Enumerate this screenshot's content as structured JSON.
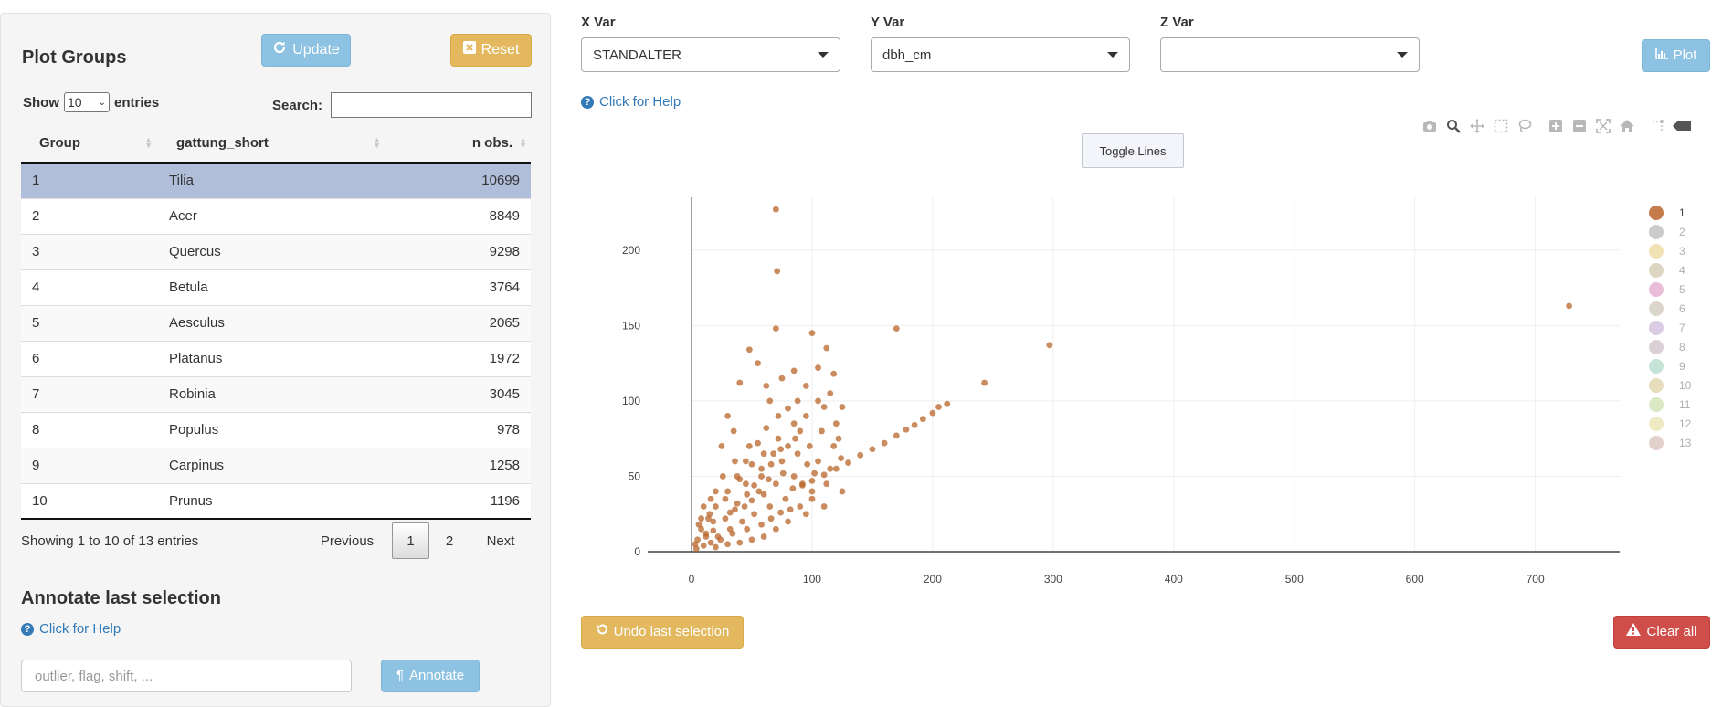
{
  "sidebar": {
    "plot_groups_title": "Plot Groups",
    "update_label": "Update",
    "reset_label": "Reset",
    "show_label": "Show",
    "entries_label": "entries",
    "page_length": "10",
    "search_label": "Search:",
    "search_value": "",
    "columns": [
      "Group",
      "gattung_short",
      "n obs."
    ],
    "rows": [
      {
        "group": "1",
        "genus": "Tilia",
        "n": "10699"
      },
      {
        "group": "2",
        "genus": "Acer",
        "n": "8849"
      },
      {
        "group": "3",
        "genus": "Quercus",
        "n": "9298"
      },
      {
        "group": "4",
        "genus": "Betula",
        "n": "3764"
      },
      {
        "group": "5",
        "genus": "Aesculus",
        "n": "2065"
      },
      {
        "group": "6",
        "genus": "Platanus",
        "n": "1972"
      },
      {
        "group": "7",
        "genus": "Robinia",
        "n": "3045"
      },
      {
        "group": "8",
        "genus": "Populus",
        "n": "978"
      },
      {
        "group": "9",
        "genus": "Carpinus",
        "n": "1258"
      },
      {
        "group": "10",
        "genus": "Prunus",
        "n": "1196"
      }
    ],
    "selected_row": "1",
    "info": "Showing 1 to 10 of 13 entries",
    "pagination": {
      "previous": "Previous",
      "current": "1",
      "page2": "2",
      "next": "Next"
    },
    "annotate_title": "Annotate last selection",
    "help_link": "Click for Help",
    "annotate_placeholder": "outlier, flag, shift, ...",
    "annotate_label": "Annotate"
  },
  "main": {
    "x_var_label": "X Var",
    "x_var_value": "STANDALTER",
    "y_var_label": "Y Var",
    "y_var_value": "dbh_cm",
    "z_var_label": "Z Var",
    "z_var_value": "",
    "plot_label": "Plot",
    "help_link": "Click for Help",
    "toggle_lines_label": "Toggle Lines",
    "undo_label": "Undo last selection",
    "clear_label": "Clear all",
    "toolbar_icons": [
      "camera-icon",
      "zoom-icon",
      "pan-icon",
      "box-select-icon",
      "lasso-select-icon",
      "zoom-in-icon",
      "zoom-out-icon",
      "autoscale-icon",
      "reset-axes-icon",
      "spike-lines-icon",
      "hover-compare-icon"
    ]
  },
  "colors": {
    "info": "#8dc2e2",
    "warning": "#e3b85e",
    "danger": "#cf4e4a",
    "selected_row": "#b0bed9",
    "link": "#337ab7",
    "series_1": "#b8652a"
  },
  "chart_data": {
    "type": "scatter",
    "xlim": [
      0,
      770
    ],
    "ylim": [
      0,
      235
    ],
    "xticks": [
      0,
      100,
      200,
      300,
      400,
      500,
      600,
      700
    ],
    "yticks": [
      0,
      50,
      100,
      150,
      200
    ],
    "grid": true,
    "legend_position": "right",
    "legend": [
      {
        "name": "1",
        "color": "#b8652a",
        "active": true
      },
      {
        "name": "2",
        "color": "#c7c7c7",
        "active": false
      },
      {
        "name": "3",
        "color": "#efdfae",
        "active": false
      },
      {
        "name": "4",
        "color": "#d9d2bb",
        "active": false
      },
      {
        "name": "5",
        "color": "#e9b5d3",
        "active": false
      },
      {
        "name": "6",
        "color": "#d6d2c6",
        "active": false
      },
      {
        "name": "7",
        "color": "#d6c6e1",
        "active": false
      },
      {
        "name": "8",
        "color": "#d8cbd3",
        "active": false
      },
      {
        "name": "9",
        "color": "#bfe0d2",
        "active": false
      },
      {
        "name": "10",
        "color": "#e4d9b6",
        "active": false
      },
      {
        "name": "11",
        "color": "#d6e6bd",
        "active": false
      },
      {
        "name": "12",
        "color": "#ece8be",
        "active": false
      },
      {
        "name": "13",
        "color": "#dfcbc5",
        "active": false
      }
    ],
    "series": [
      {
        "name": "1",
        "points": [
          [
            70,
            227
          ],
          [
            71,
            186
          ],
          [
            70,
            148
          ],
          [
            170,
            148
          ],
          [
            297,
            137
          ],
          [
            728,
            163
          ],
          [
            243,
            112
          ],
          [
            212,
            98
          ],
          [
            205,
            96
          ],
          [
            200,
            92
          ],
          [
            192,
            88
          ],
          [
            185,
            84
          ],
          [
            178,
            81
          ],
          [
            170,
            77
          ],
          [
            160,
            72
          ],
          [
            150,
            68
          ],
          [
            140,
            64
          ],
          [
            130,
            59
          ],
          [
            120,
            55
          ],
          [
            110,
            51
          ],
          [
            100,
            47
          ],
          [
            92,
            44
          ],
          [
            85,
            120
          ],
          [
            105,
            122
          ],
          [
            118,
            118
          ],
          [
            75,
            115
          ],
          [
            62,
            110
          ],
          [
            55,
            125
          ],
          [
            48,
            134
          ],
          [
            100,
            145
          ],
          [
            112,
            135
          ],
          [
            95,
            110
          ],
          [
            40,
            112
          ],
          [
            30,
            90
          ],
          [
            25,
            70
          ],
          [
            35,
            80
          ],
          [
            65,
            100
          ],
          [
            88,
            100
          ],
          [
            110,
            96
          ],
          [
            125,
            96
          ],
          [
            120,
            85
          ],
          [
            122,
            75
          ],
          [
            108,
            80
          ],
          [
            10,
            30
          ],
          [
            15,
            25
          ],
          [
            20,
            40
          ],
          [
            8,
            15
          ],
          [
            5,
            8
          ],
          [
            3,
            5
          ],
          [
            12,
            10
          ],
          [
            18,
            20
          ],
          [
            28,
            35
          ],
          [
            38,
            50
          ],
          [
            45,
            60
          ],
          [
            55,
            72
          ],
          [
            62,
            82
          ],
          [
            72,
            90
          ],
          [
            80,
            95
          ],
          [
            90,
            80
          ],
          [
            98,
            70
          ],
          [
            105,
            60
          ],
          [
            115,
            55
          ],
          [
            125,
            40
          ],
          [
            110,
            30
          ],
          [
            95,
            25
          ],
          [
            80,
            20
          ],
          [
            70,
            15
          ],
          [
            60,
            10
          ],
          [
            50,
            8
          ],
          [
            40,
            6
          ],
          [
            30,
            5
          ],
          [
            20,
            3
          ],
          [
            45,
            45
          ],
          [
            58,
            55
          ],
          [
            68,
            65
          ],
          [
            75,
            60
          ],
          [
            85,
            50
          ],
          [
            92,
            45
          ],
          [
            100,
            40
          ],
          [
            78,
            35
          ],
          [
            65,
            30
          ],
          [
            52,
            25
          ],
          [
            42,
            20
          ],
          [
            32,
            15
          ],
          [
            22,
            10
          ],
          [
            48,
            70
          ],
          [
            36,
            60
          ],
          [
            26,
            50
          ],
          [
            16,
            35
          ],
          [
            8,
            22
          ],
          [
            6,
            18
          ],
          [
            115,
            105
          ],
          [
            105,
            100
          ],
          [
            95,
            90
          ],
          [
            85,
            85
          ],
          [
            72,
            75
          ],
          [
            60,
            65
          ],
          [
            50,
            58
          ],
          [
            40,
            48
          ],
          [
            30,
            40
          ],
          [
            20,
            30
          ],
          [
            14,
            22
          ],
          [
            88,
            65
          ],
          [
            96,
            58
          ],
          [
            102,
            52
          ],
          [
            118,
            70
          ],
          [
            124,
            62
          ],
          [
            112,
            45
          ],
          [
            100,
            35
          ],
          [
            90,
            30
          ],
          [
            82,
            28
          ],
          [
            74,
            26
          ],
          [
            66,
            22
          ],
          [
            58,
            18
          ],
          [
            46,
            15
          ],
          [
            34,
            12
          ],
          [
            24,
            8
          ],
          [
            16,
            6
          ],
          [
            10,
            4
          ],
          [
            4,
            2
          ],
          [
            56,
            40
          ],
          [
            64,
            48
          ],
          [
            76,
            52
          ],
          [
            84,
            42
          ],
          [
            70,
            45
          ],
          [
            60,
            38
          ],
          [
            50,
            34
          ],
          [
            44,
            30
          ],
          [
            36,
            28
          ],
          [
            28,
            22
          ],
          [
            18,
            14
          ],
          [
            12,
            12
          ],
          [
            86,
            75
          ],
          [
            80,
            70
          ],
          [
            74,
            68
          ],
          [
            66,
            58
          ],
          [
            58,
            50
          ],
          [
            52,
            44
          ],
          [
            46,
            38
          ],
          [
            38,
            32
          ],
          [
            32,
            26
          ]
        ]
      }
    ]
  }
}
